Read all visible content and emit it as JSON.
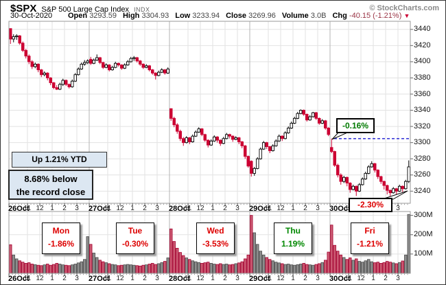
{
  "header": {
    "symbol": "$SPX",
    "name": "S&P 500 Large Cap Index",
    "exchange": "INDX",
    "copyright": "© StockCharts.com",
    "date": "30-Oct-2020",
    "fields": [
      {
        "label": "Open",
        "value": "3293.59"
      },
      {
        "label": "High",
        "value": "3304.93"
      },
      {
        "label": "Low",
        "value": "3233.94"
      },
      {
        "label": "Close",
        "value": "3269.96"
      },
      {
        "label": "Volume",
        "value": "3.0B"
      }
    ],
    "chg": {
      "label": "Chg",
      "value": "-40.15 (-1.21%)",
      "arrow": "▼"
    }
  },
  "annotations": {
    "ytd": "Up 1.21% YTD",
    "record_line1": "8.68% below",
    "record_line2": "the record close",
    "high_callout": "-0.16%",
    "low_callout": "-2.30%"
  },
  "colors": {
    "down": "#cc0033",
    "up_fill": "#ffffff",
    "up_stroke": "#000000",
    "vol_down_fill": "#cb5a72",
    "vol_down_stroke": "#a3002f",
    "vol_up_fill": "#8d8d8d",
    "vol_up_stroke": "#4a4a4a",
    "dashed_line": "#0000cc",
    "grid": "#e2e2e2",
    "day_grid": "#b3b3b3",
    "frame": "#999999",
    "red_text": "#dd0000",
    "green_text": "#008800"
  },
  "chart_data": {
    "type": "candlestick",
    "title": "$SPX 5-day 15-minute candlestick chart with volume",
    "days": [
      {
        "label": "26Oct"
      },
      {
        "label": "27Oct"
      },
      {
        "label": "28Oct"
      },
      {
        "label": "29Oct"
      },
      {
        "label": "30Oct"
      }
    ],
    "hour_labels": [
      "11",
      "12",
      "1",
      "2",
      "3"
    ],
    "y_ticks": [
      3240,
      3260,
      3280,
      3300,
      3320,
      3340,
      3360,
      3380,
      3400,
      3420,
      3440
    ],
    "y_range": [
      3225,
      3450
    ],
    "volume_ticks": [
      {
        "label": "100M",
        "value": 100
      },
      {
        "label": "200M",
        "value": 200
      },
      {
        "label": "300M",
        "value": 300
      }
    ],
    "volume_max": 320,
    "dashed_line_price": 3304.93,
    "day_boxes": [
      {
        "label": "Mon",
        "pct": "-1.86%",
        "color": "#dd0000"
      },
      {
        "label": "Tue",
        "pct": "-0.30%",
        "color": "#dd0000"
      },
      {
        "label": "Wed",
        "pct": "-3.53%",
        "color": "#dd0000"
      },
      {
        "label": "Thu",
        "pct": "1.19%",
        "color": "#008800"
      },
      {
        "label": "Fri",
        "pct": "-1.21%",
        "color": "#dd0000"
      }
    ],
    "ohlc": [
      [
        3441,
        3441,
        3422,
        3428
      ],
      [
        3428,
        3434,
        3424,
        3431
      ],
      [
        3431,
        3434,
        3427,
        3432
      ],
      [
        3432,
        3433,
        3421,
        3423
      ],
      [
        3423,
        3425,
        3412,
        3414
      ],
      [
        3414,
        3416,
        3404,
        3407
      ],
      [
        3407,
        3409,
        3397,
        3400
      ],
      [
        3400,
        3402,
        3391,
        3394
      ],
      [
        3394,
        3399,
        3392,
        3397
      ],
      [
        3397,
        3398,
        3387,
        3390
      ],
      [
        3390,
        3391,
        3381,
        3384
      ],
      [
        3384,
        3388,
        3382,
        3386
      ],
      [
        3386,
        3387,
        3377,
        3380
      ],
      [
        3380,
        3381,
        3371,
        3374
      ],
      [
        3374,
        3375,
        3366,
        3368
      ],
      [
        3368,
        3371,
        3365,
        3366
      ],
      [
        3366,
        3374,
        3365,
        3372
      ],
      [
        3372,
        3379,
        3370,
        3377
      ],
      [
        3377,
        3378,
        3370,
        3372
      ],
      [
        3372,
        3373,
        3367,
        3369
      ],
      [
        3369,
        3378,
        3368,
        3376
      ],
      [
        3376,
        3386,
        3375,
        3384
      ],
      [
        3384,
        3393,
        3383,
        3391
      ],
      [
        3391,
        3399,
        3390,
        3397
      ],
      [
        3397,
        3402,
        3395,
        3399
      ],
      [
        3399,
        3403,
        3397,
        3401
      ],
      [
        3403,
        3406,
        3396,
        3398
      ],
      [
        3398,
        3404,
        3397,
        3402
      ],
      [
        3402,
        3409,
        3401,
        3405
      ],
      [
        3405,
        3406,
        3397,
        3399
      ],
      [
        3399,
        3400,
        3391,
        3393
      ],
      [
        3393,
        3398,
        3392,
        3396
      ],
      [
        3396,
        3397,
        3388,
        3390
      ],
      [
        3390,
        3395,
        3389,
        3393
      ],
      [
        3393,
        3400,
        3392,
        3398
      ],
      [
        3398,
        3399,
        3394,
        3396
      ],
      [
        3396,
        3397,
        3390,
        3392
      ],
      [
        3392,
        3398,
        3391,
        3396
      ],
      [
        3396,
        3402,
        3395,
        3400
      ],
      [
        3400,
        3406,
        3399,
        3404
      ],
      [
        3404,
        3407,
        3401,
        3405
      ],
      [
        3405,
        3406,
        3399,
        3401
      ],
      [
        3401,
        3402,
        3395,
        3397
      ],
      [
        3397,
        3398,
        3391,
        3393
      ],
      [
        3393,
        3397,
        3392,
        3395
      ],
      [
        3395,
        3396,
        3388,
        3390
      ],
      [
        3390,
        3391,
        3384,
        3386
      ],
      [
        3386,
        3387,
        3378,
        3383
      ],
      [
        3383,
        3389,
        3382,
        3387
      ],
      [
        3387,
        3392,
        3386,
        3390
      ],
      [
        3390,
        3391,
        3384,
        3386
      ],
      [
        3386,
        3393,
        3385,
        3391
      ],
      [
        3342,
        3342,
        3327,
        3330
      ],
      [
        3330,
        3332,
        3319,
        3322
      ],
      [
        3322,
        3324,
        3311,
        3314
      ],
      [
        3314,
        3316,
        3302,
        3305
      ],
      [
        3305,
        3307,
        3296,
        3300
      ],
      [
        3300,
        3308,
        3299,
        3306
      ],
      [
        3306,
        3307,
        3298,
        3301
      ],
      [
        3301,
        3310,
        3300,
        3308
      ],
      [
        3308,
        3315,
        3307,
        3313
      ],
      [
        3313,
        3319,
        3312,
        3317
      ],
      [
        3317,
        3318,
        3308,
        3310
      ],
      [
        3310,
        3311,
        3301,
        3303
      ],
      [
        3303,
        3304,
        3294,
        3297
      ],
      [
        3297,
        3304,
        3296,
        3302
      ],
      [
        3302,
        3309,
        3301,
        3307
      ],
      [
        3307,
        3308,
        3300,
        3303
      ],
      [
        3303,
        3304,
        3296,
        3299
      ],
      [
        3299,
        3307,
        3298,
        3305
      ],
      [
        3305,
        3312,
        3304,
        3310
      ],
      [
        3310,
        3311,
        3305,
        3308
      ],
      [
        3308,
        3309,
        3301,
        3304
      ],
      [
        3304,
        3308,
        3303,
        3306
      ],
      [
        3306,
        3307,
        3298,
        3301
      ],
      [
        3301,
        3302,
        3293,
        3296
      ],
      [
        3296,
        3297,
        3280,
        3283
      ],
      [
        3283,
        3284,
        3269,
        3271
      ],
      [
        3277,
        3278,
        3258,
        3262
      ],
      [
        3262,
        3270,
        3259,
        3268
      ],
      [
        3268,
        3282,
        3267,
        3280
      ],
      [
        3280,
        3294,
        3279,
        3292
      ],
      [
        3292,
        3302,
        3291,
        3300
      ],
      [
        3300,
        3301,
        3292,
        3295
      ],
      [
        3295,
        3296,
        3287,
        3290
      ],
      [
        3290,
        3298,
        3289,
        3296
      ],
      [
        3296,
        3304,
        3295,
        3302
      ],
      [
        3302,
        3310,
        3301,
        3308
      ],
      [
        3308,
        3309,
        3302,
        3305
      ],
      [
        3305,
        3314,
        3304,
        3312
      ],
      [
        3312,
        3320,
        3311,
        3318
      ],
      [
        3318,
        3326,
        3317,
        3324
      ],
      [
        3324,
        3332,
        3323,
        3330
      ],
      [
        3330,
        3338,
        3329,
        3336
      ],
      [
        3336,
        3341,
        3335,
        3340
      ],
      [
        3340,
        3341,
        3333,
        3335
      ],
      [
        3335,
        3336,
        3326,
        3328
      ],
      [
        3328,
        3334,
        3327,
        3332
      ],
      [
        3332,
        3338,
        3331,
        3337
      ],
      [
        3337,
        3338,
        3328,
        3330
      ],
      [
        3330,
        3331,
        3322,
        3324
      ],
      [
        3324,
        3329,
        3323,
        3327
      ],
      [
        3327,
        3328,
        3316,
        3318
      ],
      [
        3318,
        3319,
        3308,
        3310
      ],
      [
        3294,
        3305,
        3287,
        3289
      ],
      [
        3289,
        3290,
        3270,
        3272
      ],
      [
        3272,
        3274,
        3257,
        3260
      ],
      [
        3260,
        3262,
        3248,
        3252
      ],
      [
        3252,
        3259,
        3250,
        3257
      ],
      [
        3257,
        3258,
        3246,
        3250
      ],
      [
        3250,
        3251,
        3238,
        3242
      ],
      [
        3242,
        3248,
        3241,
        3246
      ],
      [
        3246,
        3247,
        3234,
        3240
      ],
      [
        3240,
        3250,
        3239,
        3248
      ],
      [
        3248,
        3257,
        3247,
        3255
      ],
      [
        3255,
        3264,
        3254,
        3262
      ],
      [
        3262,
        3272,
        3261,
        3270
      ],
      [
        3270,
        3277,
        3269,
        3274
      ],
      [
        3274,
        3275,
        3263,
        3266
      ],
      [
        3266,
        3267,
        3255,
        3258
      ],
      [
        3258,
        3259,
        3249,
        3252
      ],
      [
        3252,
        3253,
        3242,
        3247
      ],
      [
        3247,
        3248,
        3236,
        3241
      ],
      [
        3241,
        3242,
        3234,
        3238
      ],
      [
        3238,
        3245,
        3237,
        3243
      ],
      [
        3243,
        3244,
        3236,
        3240
      ],
      [
        3240,
        3248,
        3239,
        3246
      ],
      [
        3246,
        3247,
        3239,
        3243
      ],
      [
        3243,
        3254,
        3242,
        3252
      ],
      [
        3252,
        3278,
        3250,
        3270
      ]
    ],
    "volume": [
      148,
      95,
      75,
      65,
      58,
      52,
      55,
      48,
      45,
      42,
      40,
      44,
      48,
      42,
      46,
      52,
      48,
      44,
      42,
      40,
      44,
      48,
      54,
      60,
      72,
      190,
      150,
      105,
      82,
      68,
      60,
      55,
      50,
      46,
      44,
      40,
      42,
      44,
      46,
      44,
      42,
      40,
      38,
      42,
      44,
      48,
      52,
      46,
      50,
      56,
      62,
      80,
      230,
      165,
      130,
      108,
      92,
      80,
      72,
      65,
      60,
      56,
      52,
      55,
      58,
      52,
      48,
      46,
      50,
      46,
      48,
      44,
      46,
      50,
      54,
      60,
      75,
      95,
      300,
      210,
      150,
      115,
      95,
      82,
      72,
      65,
      58,
      54,
      50,
      46,
      48,
      44,
      42,
      45,
      48,
      52,
      46,
      44,
      42,
      46,
      50,
      56,
      68,
      110,
      250,
      145,
      115,
      95,
      82,
      72,
      80,
      68,
      75,
      62,
      58,
      65,
      72,
      60,
      55,
      58,
      52,
      56,
      62,
      58,
      54,
      50,
      56,
      64,
      95,
      305
    ]
  }
}
